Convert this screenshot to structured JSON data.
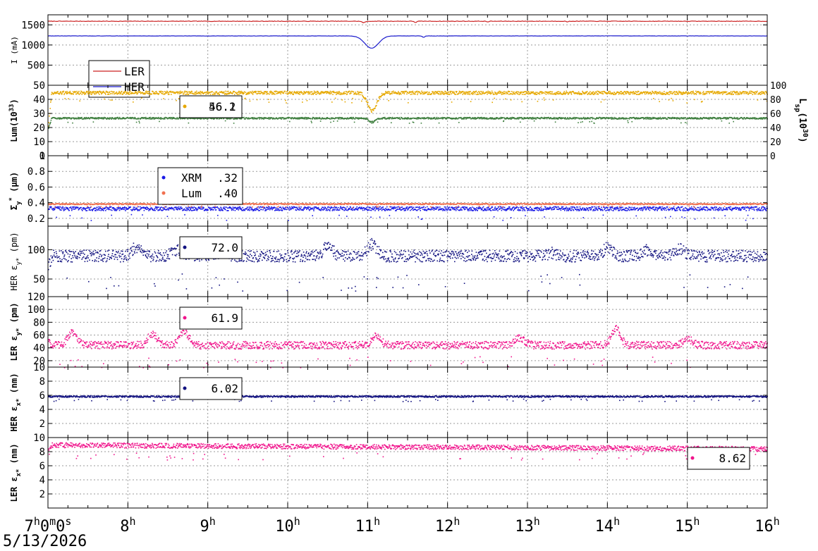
{
  "date": "5/13/2026",
  "x_axis": {
    "range_hours": [
      7,
      16
    ],
    "ticks": [
      {
        "h": 7,
        "label": "7",
        "sup": "h",
        "sub": "0",
        "sup2": "m",
        "sub2": "0",
        "sup3": "s"
      },
      {
        "h": 8,
        "label": "8",
        "sup": "h"
      },
      {
        "h": 9,
        "label": "9",
        "sup": "h"
      },
      {
        "h": 10,
        "label": "10",
        "sup": "h"
      },
      {
        "h": 11,
        "label": "11",
        "sup": "h"
      },
      {
        "h": 12,
        "label": "12",
        "sup": "h"
      },
      {
        "h": 13,
        "label": "13",
        "sup": "h"
      },
      {
        "h": 14,
        "label": "14",
        "sup": "h"
      },
      {
        "h": 15,
        "label": "15",
        "sup": "h"
      },
      {
        "h": 16,
        "label": "16",
        "sup": "h"
      }
    ]
  },
  "chart_data": [
    {
      "type": "line",
      "ylabel": "I (mA)",
      "ylim": [
        0,
        1750
      ],
      "yticks": [
        500,
        1000,
        1500
      ],
      "grid": true,
      "legend": {
        "placement": "bottom-left"
      },
      "series": [
        {
          "name": "LER",
          "color": "#cc2222",
          "base": 1590,
          "start": 1590,
          "noise": 6,
          "dips": [
            [
              10.95,
              1555,
              0.03
            ],
            [
              11.6,
              1560,
              0.02
            ],
            [
              12.5,
              1575,
              0.02
            ],
            [
              13.5,
              1575,
              0.02
            ]
          ]
        },
        {
          "name": "HER",
          "color": "#1a1acc",
          "base": 1225,
          "start": 1225,
          "noise": 3,
          "dips": [
            [
              11.05,
              920,
              0.12
            ],
            [
              11.7,
              1190,
              0.02
            ]
          ]
        }
      ]
    },
    {
      "type": "scatter",
      "ylabel": "Lum(10",
      "ylabel_sup": "33",
      "ylabel_tail": ")",
      "ylim": [
        0,
        50
      ],
      "yticks": [
        0,
        10,
        20,
        30,
        40,
        50
      ],
      "y2label": "L",
      "y2label_sub": "sp",
      "y2label_mid": "(10",
      "y2label_sup": "30",
      "y2label_tail": ")",
      "y2lim": [
        0,
        100
      ],
      "y2ticks": [
        0,
        20,
        40,
        60,
        80,
        100
      ],
      "grid": true,
      "legend": {
        "placement": "top-left",
        "value_top": "46.1",
        "value_bottom": "56.2"
      },
      "series": [
        {
          "color": "#e6a800",
          "base": 45,
          "start": 22,
          "noise": 1.2,
          "dips": [
            [
              11.05,
              32,
              0.08
            ]
          ]
        },
        {
          "color": "#3f7f3f",
          "base": 27,
          "start": 20,
          "noise": 0.6,
          "dips": [
            [
              11.05,
              24,
              0.05
            ]
          ]
        }
      ]
    },
    {
      "type": "scatter",
      "ylabel": "Σ",
      "ylabel_sub": "y",
      "ylabel_sup": "*",
      "ylabel_tail": " (μm)",
      "ylim": [
        0.1,
        1.0
      ],
      "yticks": [
        0.2,
        0.4,
        0.6,
        0.8,
        1
      ],
      "grid": true,
      "legend": {
        "placement": "top-left"
      },
      "series": [
        {
          "name": "XRM",
          "value": ".32",
          "color": "#1a1ae6",
          "base": 0.33,
          "start": 0.33,
          "noise": 0.025
        },
        {
          "name": "Lum",
          "value": ".40",
          "color": "#f07050",
          "base": 0.39,
          "start": 0.39,
          "noise": 0.008
        }
      ]
    },
    {
      "type": "scatter",
      "ylabel": "HER ε",
      "ylabel_sub": "y*",
      "ylabel_tail": " (pm)",
      "ylim": [
        20,
        140
      ],
      "yticks": [
        50,
        100
      ],
      "grid": true,
      "legend": {
        "placement": "top-left",
        "value": "72.0"
      },
      "series": [
        {
          "color": "#121280",
          "base": 90,
          "start": 70,
          "noise": 10,
          "bumps": [
            [
              8.1,
              15
            ],
            [
              8.6,
              10
            ],
            [
              9.2,
              6
            ],
            [
              10.5,
              18
            ],
            [
              11.05,
              20
            ],
            [
              13.3,
              5
            ],
            [
              14.0,
              15
            ],
            [
              14.5,
              10
            ],
            [
              14.9,
              12
            ]
          ]
        }
      ]
    },
    {
      "type": "scatter",
      "ylabel": "LER ε",
      "ylabel_sub": "y*",
      "ylabel_tail": " (pm)",
      "ylim": [
        10,
        120
      ],
      "yticks": [
        10,
        20,
        40,
        60,
        80,
        100,
        120
      ],
      "grid": true,
      "legend": {
        "placement": "top-left",
        "value": "61.9"
      },
      "series": [
        {
          "color": "#f0148c",
          "base": 45,
          "start": 55,
          "noise": 6,
          "bumps": [
            [
              7.3,
              20
            ],
            [
              8.3,
              18
            ],
            [
              8.7,
              20
            ],
            [
              11.1,
              15
            ],
            [
              12.9,
              12
            ],
            [
              14.1,
              25
            ],
            [
              15.0,
              10
            ]
          ]
        }
      ]
    },
    {
      "type": "scatter",
      "ylabel": "HER ε",
      "ylabel_sub": "x*",
      "ylabel_tail": " (nm)",
      "ylim": [
        0,
        10
      ],
      "yticks": [
        2,
        4,
        6,
        8
      ],
      "grid": true,
      "legend": {
        "placement": "top-left",
        "value": "6.02"
      },
      "series": [
        {
          "color": "#121280",
          "base": 5.9,
          "start": 5.9,
          "noise": 0.12
        }
      ]
    },
    {
      "type": "scatter",
      "ylabel": "LER ε",
      "ylabel_sub": "x*",
      "ylabel_tail": " (nm)",
      "ylim": [
        0,
        10
      ],
      "yticks": [
        2,
        4,
        6,
        8,
        10
      ],
      "grid": true,
      "legend": {
        "placement": "bottom-right",
        "value": "8.62"
      },
      "series": [
        {
          "color": "#f0148c",
          "base": 9.0,
          "start": 8.5,
          "noise": 0.35,
          "trend": -0.06
        }
      ]
    }
  ]
}
